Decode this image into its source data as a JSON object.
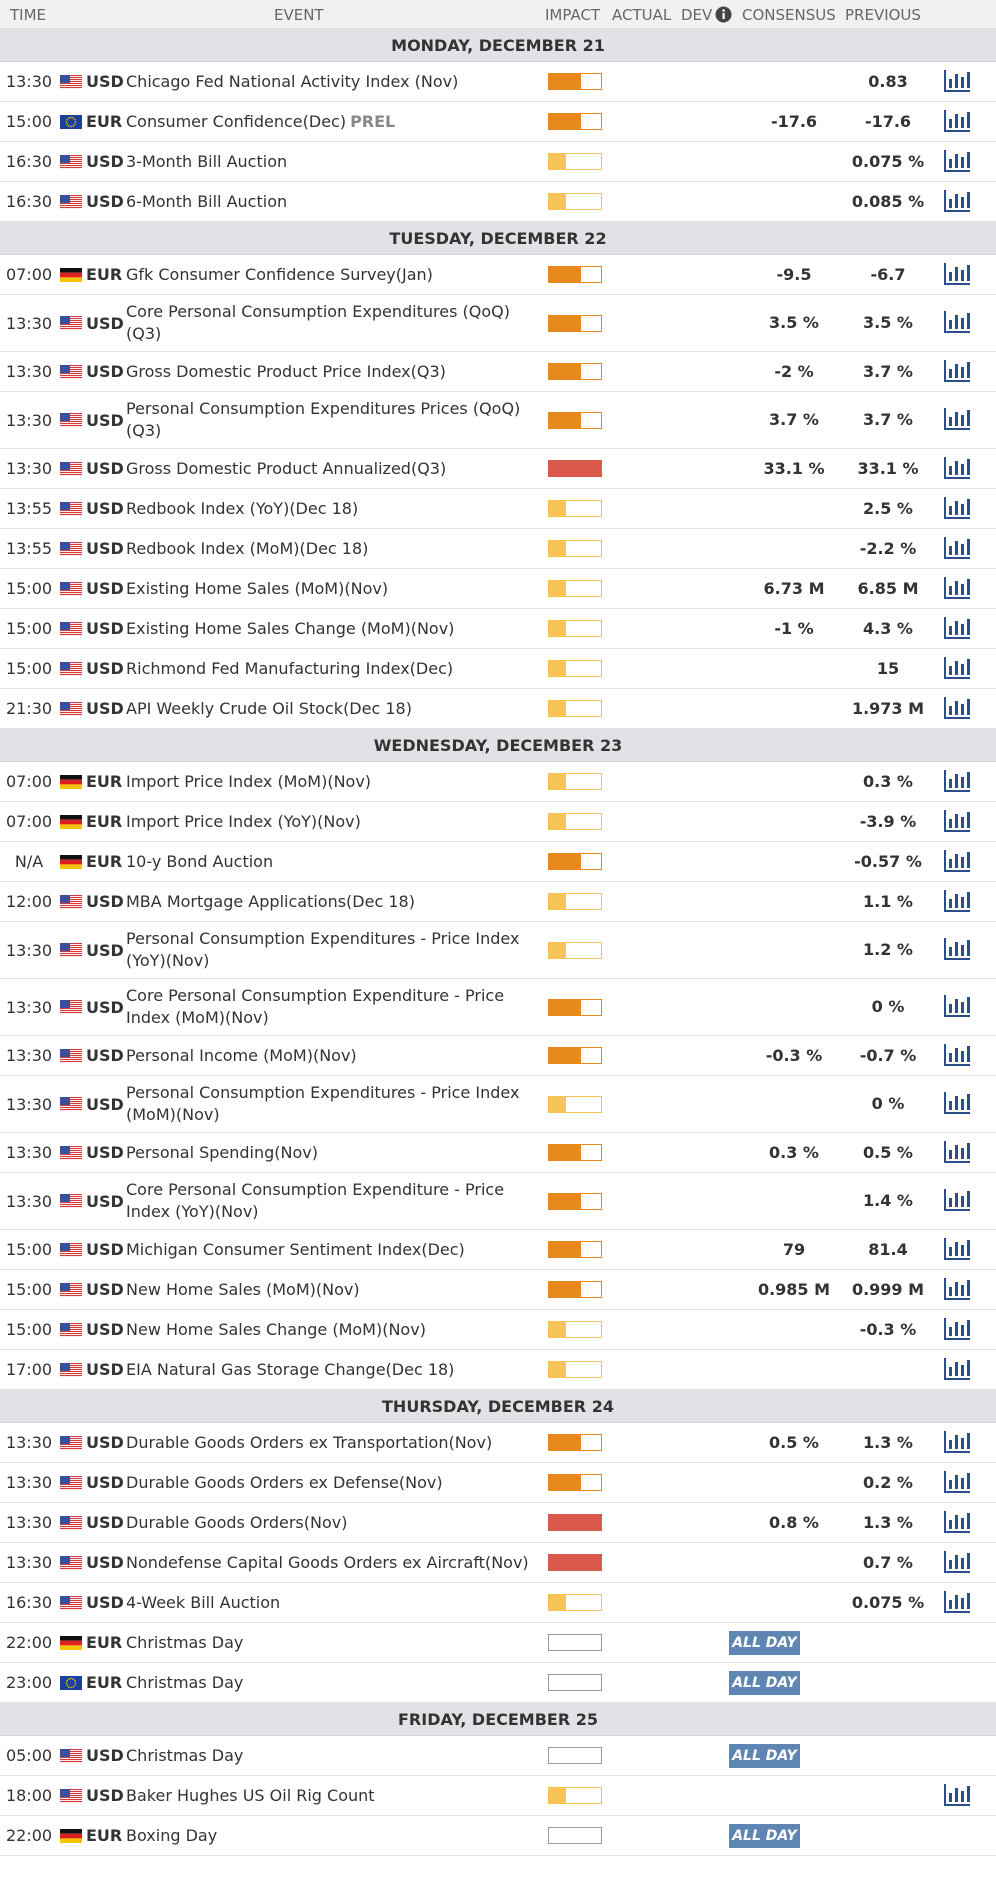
{
  "header": {
    "time": "TIME",
    "event": "EVENT",
    "impact": "IMPACT",
    "actual": "ACTUAL",
    "dev": "DEV",
    "consensus": "CONSENSUS",
    "previous": "PREVIOUS"
  },
  "days": [
    {
      "title": "MONDAY, DECEMBER 21",
      "rows": [
        {
          "time": "13:30",
          "flag": "us",
          "currency": "USD",
          "event": "Chicago Fed National Activity Index (Nov)",
          "impact": 2,
          "previous": "0.83",
          "chart": true
        },
        {
          "time": "15:00",
          "flag": "eu",
          "currency": "EUR",
          "event": "Consumer Confidence(Dec)",
          "prel": "PREL",
          "impact": 2,
          "consensus": "-17.6",
          "previous": "-17.6",
          "chart": true
        },
        {
          "time": "16:30",
          "flag": "us",
          "currency": "USD",
          "event": "3-Month Bill Auction",
          "impact": 1,
          "previous": "0.075 %",
          "chart": true
        },
        {
          "time": "16:30",
          "flag": "us",
          "currency": "USD",
          "event": "6-Month Bill Auction",
          "impact": 1,
          "previous": "0.085 %",
          "chart": true
        }
      ]
    },
    {
      "title": "TUESDAY, DECEMBER 22",
      "rows": [
        {
          "time": "07:00",
          "flag": "de",
          "currency": "EUR",
          "event": "Gfk Consumer Confidence Survey(Jan)",
          "impact": 2,
          "consensus": "-9.5",
          "previous": "-6.7",
          "chart": true
        },
        {
          "time": "13:30",
          "flag": "us",
          "currency": "USD",
          "event": "Core Personal Consumption Expenditures (QoQ)(Q3)",
          "impact": 2,
          "consensus": "3.5 %",
          "previous": "3.5 %",
          "chart": true
        },
        {
          "time": "13:30",
          "flag": "us",
          "currency": "USD",
          "event": "Gross Domestic Product Price Index(Q3)",
          "impact": 2,
          "consensus": "-2 %",
          "previous": "3.7 %",
          "chart": true
        },
        {
          "time": "13:30",
          "flag": "us",
          "currency": "USD",
          "event": "Personal Consumption Expenditures Prices (QoQ)(Q3)",
          "impact": 2,
          "consensus": "3.7 %",
          "previous": "3.7 %",
          "chart": true
        },
        {
          "time": "13:30",
          "flag": "us",
          "currency": "USD",
          "event": "Gross Domestic Product Annualized(Q3)",
          "impact": 3,
          "consensus": "33.1 %",
          "previous": "33.1 %",
          "chart": true
        },
        {
          "time": "13:55",
          "flag": "us",
          "currency": "USD",
          "event": "Redbook Index (YoY)(Dec 18)",
          "impact": 1,
          "previous": "2.5 %",
          "chart": true
        },
        {
          "time": "13:55",
          "flag": "us",
          "currency": "USD",
          "event": "Redbook Index (MoM)(Dec 18)",
          "impact": 1,
          "previous": "-2.2 %",
          "chart": true
        },
        {
          "time": "15:00",
          "flag": "us",
          "currency": "USD",
          "event": "Existing Home Sales (MoM)(Nov)",
          "impact": 1,
          "consensus": "6.73 M",
          "previous": "6.85 M",
          "chart": true
        },
        {
          "time": "15:00",
          "flag": "us",
          "currency": "USD",
          "event": "Existing Home Sales Change (MoM)(Nov)",
          "impact": 1,
          "consensus": "-1 %",
          "previous": "4.3 %",
          "chart": true
        },
        {
          "time": "15:00",
          "flag": "us",
          "currency": "USD",
          "event": "Richmond Fed Manufacturing Index(Dec)",
          "impact": 1,
          "previous": "15",
          "chart": true
        },
        {
          "time": "21:30",
          "flag": "us",
          "currency": "USD",
          "event": "API Weekly Crude Oil Stock(Dec 18)",
          "impact": 1,
          "previous": "1.973 M",
          "chart": true
        }
      ]
    },
    {
      "title": "WEDNESDAY, DECEMBER 23",
      "rows": [
        {
          "time": "07:00",
          "flag": "de",
          "currency": "EUR",
          "event": "Import Price Index (MoM)(Nov)",
          "impact": 1,
          "previous": "0.3 %",
          "chart": true
        },
        {
          "time": "07:00",
          "flag": "de",
          "currency": "EUR",
          "event": "Import Price Index (YoY)(Nov)",
          "impact": 1,
          "previous": "-3.9 %",
          "chart": true
        },
        {
          "time": "N/A",
          "flag": "de",
          "currency": "EUR",
          "event": "10-y Bond Auction",
          "impact": 2,
          "previous": "-0.57 %",
          "chart": true
        },
        {
          "time": "12:00",
          "flag": "us",
          "currency": "USD",
          "event": "MBA Mortgage Applications(Dec 18)",
          "impact": 1,
          "previous": "1.1 %",
          "chart": true
        },
        {
          "time": "13:30",
          "flag": "us",
          "currency": "USD",
          "event": "Personal Consumption Expenditures - Price Index (YoY)(Nov)",
          "impact": 1,
          "previous": "1.2 %",
          "chart": true
        },
        {
          "time": "13:30",
          "flag": "us",
          "currency": "USD",
          "event": "Core Personal Consumption Expenditure - Price Index (MoM)(Nov)",
          "impact": 2,
          "previous": "0 %",
          "chart": true
        },
        {
          "time": "13:30",
          "flag": "us",
          "currency": "USD",
          "event": "Personal Income (MoM)(Nov)",
          "impact": 2,
          "consensus": "-0.3 %",
          "previous": "-0.7 %",
          "chart": true
        },
        {
          "time": "13:30",
          "flag": "us",
          "currency": "USD",
          "event": "Personal Consumption Expenditures - Price Index (MoM)(Nov)",
          "impact": 1,
          "previous": "0 %",
          "chart": true
        },
        {
          "time": "13:30",
          "flag": "us",
          "currency": "USD",
          "event": "Personal Spending(Nov)",
          "impact": 2,
          "consensus": "0.3 %",
          "previous": "0.5 %",
          "chart": true
        },
        {
          "time": "13:30",
          "flag": "us",
          "currency": "USD",
          "event": "Core Personal Consumption Expenditure - Price Index (YoY)(Nov)",
          "impact": 2,
          "previous": "1.4 %",
          "chart": true
        },
        {
          "time": "15:00",
          "flag": "us",
          "currency": "USD",
          "event": "Michigan Consumer Sentiment Index(Dec)",
          "impact": 2,
          "consensus": "79",
          "previous": "81.4",
          "chart": true
        },
        {
          "time": "15:00",
          "flag": "us",
          "currency": "USD",
          "event": "New Home Sales (MoM)(Nov)",
          "impact": 2,
          "consensus": "0.985 M",
          "previous": "0.999 M",
          "chart": true
        },
        {
          "time": "15:00",
          "flag": "us",
          "currency": "USD",
          "event": "New Home Sales Change (MoM)(Nov)",
          "impact": 1,
          "previous": "-0.3 %",
          "chart": true
        },
        {
          "time": "17:00",
          "flag": "us",
          "currency": "USD",
          "event": "EIA Natural Gas Storage Change(Dec 18)",
          "impact": 1,
          "chart": true
        }
      ]
    },
    {
      "title": "THURSDAY, DECEMBER 24",
      "rows": [
        {
          "time": "13:30",
          "flag": "us",
          "currency": "USD",
          "event": "Durable Goods Orders ex Transportation(Nov)",
          "impact": 2,
          "consensus": "0.5 %",
          "previous": "1.3 %",
          "chart": true
        },
        {
          "time": "13:30",
          "flag": "us",
          "currency": "USD",
          "event": "Durable Goods Orders ex Defense(Nov)",
          "impact": 2,
          "previous": "0.2 %",
          "chart": true
        },
        {
          "time": "13:30",
          "flag": "us",
          "currency": "USD",
          "event": "Durable Goods Orders(Nov)",
          "impact": 3,
          "consensus": "0.8 %",
          "previous": "1.3 %",
          "chart": true
        },
        {
          "time": "13:30",
          "flag": "us",
          "currency": "USD",
          "event": "Nondefense Capital Goods Orders ex Aircraft(Nov)",
          "impact": 3,
          "previous": "0.7 %",
          "chart": true
        },
        {
          "time": "16:30",
          "flag": "us",
          "currency": "USD",
          "event": "4-Week Bill Auction",
          "impact": 1,
          "previous": "0.075 %",
          "chart": true
        },
        {
          "time": "22:00",
          "flag": "de",
          "currency": "EUR",
          "event": "Christmas Day",
          "impact": 0,
          "all_day": "ALL DAY",
          "chart": false
        },
        {
          "time": "23:00",
          "flag": "eu",
          "currency": "EUR",
          "event": "Christmas Day",
          "impact": 0,
          "all_day": "ALL DAY",
          "chart": false
        }
      ]
    },
    {
      "title": "FRIDAY, DECEMBER 25",
      "rows": [
        {
          "time": "05:00",
          "flag": "us",
          "currency": "USD",
          "event": "Christmas Day",
          "impact": 0,
          "all_day": "ALL DAY",
          "chart": false
        },
        {
          "time": "18:00",
          "flag": "us",
          "currency": "USD",
          "event": "Baker Hughes US Oil Rig Count",
          "impact": 1,
          "chart": true
        },
        {
          "time": "22:00",
          "flag": "de",
          "currency": "EUR",
          "event": "Boxing Day",
          "impact": 0,
          "all_day": "ALL DAY",
          "chart": false
        }
      ]
    }
  ]
}
